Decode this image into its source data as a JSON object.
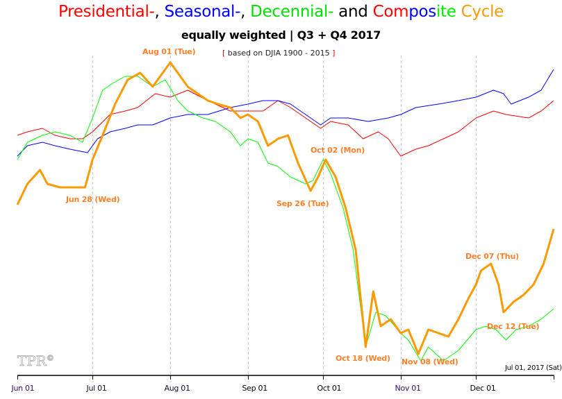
{
  "title_parts": [
    {
      "text": "Presidential-",
      "color": "#ff0000"
    },
    {
      "text": ", ",
      "color": "#000000"
    },
    {
      "text": "Seasonal-",
      "color": "#0000ff"
    },
    {
      "text": ", ",
      "color": "#000000"
    },
    {
      "text": "Decennial-",
      "color": "#00dd00"
    },
    {
      "text": " and ",
      "color": "#000000"
    },
    {
      "text": "Com",
      "color": "#ff0000"
    },
    {
      "text": "pos",
      "color": "#0000ff"
    },
    {
      "text": "ite",
      "color": "#00ee00"
    },
    {
      "text": " Cycle",
      "color": "#ff9900"
    }
  ],
  "subtitle": "equally weighted | Q3 + Q4 2017",
  "basis": {
    "open": "[",
    "text": " based on DJIA 1900 - 2015 ",
    "close": "]"
  },
  "end_date_label": "Jul 01, 2017 (Sat)",
  "watermark": "TPR©",
  "chart_data": {
    "type": "line",
    "title": "Presidential-, Seasonal-, Decennial- and Composite Cycle",
    "subtitle": "equally weighted | Q3 + Q4 2017",
    "x_range": [
      "2017-06-01",
      "2018-01-01"
    ],
    "y_range": [
      0,
      100
    ],
    "y_axis_labels": "none",
    "grid": "vertical dashed at month starts",
    "x_ticks": [
      "Jun 01",
      "Jul 01",
      "Aug 01",
      "Sep 01",
      "Oct 01",
      "Nov 01",
      "Dec 01"
    ],
    "x_tick_dates": [
      "2017-06-01",
      "2017-07-01",
      "2017-08-01",
      "2017-09-01",
      "2017-10-01",
      "2017-11-01",
      "2017-12-01"
    ],
    "series": [
      {
        "key": "presidential",
        "color": "#ff0000",
        "width": 1,
        "points": [
          [
            "2017-06-01",
            69
          ],
          [
            "2017-06-05",
            70
          ],
          [
            "2017-06-11",
            71
          ],
          [
            "2017-06-16",
            69
          ],
          [
            "2017-06-22",
            68
          ],
          [
            "2017-06-27",
            68
          ],
          [
            "2017-07-01",
            70
          ],
          [
            "2017-07-08",
            75
          ],
          [
            "2017-07-14",
            76
          ],
          [
            "2017-07-19",
            77
          ],
          [
            "2017-07-26",
            81
          ],
          [
            "2017-08-01",
            80
          ],
          [
            "2017-08-08",
            82
          ],
          [
            "2017-08-16",
            79
          ],
          [
            "2017-08-25",
            76
          ],
          [
            "2017-09-01",
            76
          ],
          [
            "2017-09-07",
            76
          ],
          [
            "2017-09-13",
            79
          ],
          [
            "2017-09-18",
            77
          ],
          [
            "2017-09-24",
            74
          ],
          [
            "2017-09-30",
            71
          ],
          [
            "2017-10-04",
            73
          ],
          [
            "2017-10-11",
            72
          ],
          [
            "2017-10-17",
            68
          ],
          [
            "2017-10-23",
            70
          ],
          [
            "2017-10-27",
            68
          ],
          [
            "2017-11-01",
            63
          ],
          [
            "2017-11-07",
            65
          ],
          [
            "2017-11-12",
            66
          ],
          [
            "2017-11-18",
            68
          ],
          [
            "2017-11-24",
            70
          ],
          [
            "2017-12-01",
            74
          ],
          [
            "2017-12-08",
            76
          ],
          [
            "2017-12-13",
            75
          ],
          [
            "2017-12-22",
            74
          ],
          [
            "2017-12-27",
            76
          ],
          [
            "2018-01-01",
            79
          ]
        ]
      },
      {
        "key": "seasonal",
        "color": "#0000ff",
        "width": 1,
        "points": [
          [
            "2017-06-01",
            63
          ],
          [
            "2017-06-05",
            66
          ],
          [
            "2017-06-11",
            67
          ],
          [
            "2017-06-16",
            66
          ],
          [
            "2017-06-22",
            65
          ],
          [
            "2017-06-29",
            64
          ],
          [
            "2017-07-03",
            68
          ],
          [
            "2017-07-08",
            70
          ],
          [
            "2017-07-14",
            71
          ],
          [
            "2017-07-19",
            72
          ],
          [
            "2017-07-25",
            72
          ],
          [
            "2017-08-01",
            74
          ],
          [
            "2017-08-08",
            75
          ],
          [
            "2017-08-16",
            75
          ],
          [
            "2017-08-25",
            77
          ],
          [
            "2017-09-01",
            78
          ],
          [
            "2017-09-07",
            79
          ],
          [
            "2017-09-13",
            79
          ],
          [
            "2017-09-18",
            78
          ],
          [
            "2017-09-24",
            75
          ],
          [
            "2017-09-30",
            72
          ],
          [
            "2017-10-04",
            74
          ],
          [
            "2017-10-11",
            74
          ],
          [
            "2017-10-19",
            73
          ],
          [
            "2017-10-27",
            74
          ],
          [
            "2017-11-01",
            75
          ],
          [
            "2017-11-07",
            77
          ],
          [
            "2017-11-16",
            78
          ],
          [
            "2017-11-24",
            79
          ],
          [
            "2017-12-01",
            80
          ],
          [
            "2017-12-08",
            82
          ],
          [
            "2017-12-12",
            81
          ],
          [
            "2017-12-15",
            78
          ],
          [
            "2017-12-22",
            80
          ],
          [
            "2017-12-27",
            82
          ],
          [
            "2018-01-01",
            88
          ]
        ]
      },
      {
        "key": "decennial",
        "color": "#00ff00",
        "width": 1,
        "points": [
          [
            "2017-06-01",
            62
          ],
          [
            "2017-06-05",
            67
          ],
          [
            "2017-06-11",
            69
          ],
          [
            "2017-06-16",
            70
          ],
          [
            "2017-06-22",
            69
          ],
          [
            "2017-06-27",
            67
          ],
          [
            "2017-07-01",
            74
          ],
          [
            "2017-07-05",
            82
          ],
          [
            "2017-07-09",
            84
          ],
          [
            "2017-07-14",
            86
          ],
          [
            "2017-07-19",
            86
          ],
          [
            "2017-07-25",
            83
          ],
          [
            "2017-07-30",
            85
          ],
          [
            "2017-08-04",
            79
          ],
          [
            "2017-08-08",
            76
          ],
          [
            "2017-08-14",
            74
          ],
          [
            "2017-08-19",
            73
          ],
          [
            "2017-08-25",
            70
          ],
          [
            "2017-08-29",
            66
          ],
          [
            "2017-09-01",
            68
          ],
          [
            "2017-09-05",
            67
          ],
          [
            "2017-09-09",
            61
          ],
          [
            "2017-09-13",
            60
          ],
          [
            "2017-09-18",
            57
          ],
          [
            "2017-09-24",
            55
          ],
          [
            "2017-09-27",
            56
          ],
          [
            "2017-10-01",
            62
          ],
          [
            "2017-10-04",
            58
          ],
          [
            "2017-10-09",
            48
          ],
          [
            "2017-10-13",
            36
          ],
          [
            "2017-10-18",
            8
          ],
          [
            "2017-10-22",
            18
          ],
          [
            "2017-10-26",
            17
          ],
          [
            "2017-11-01",
            12
          ],
          [
            "2017-11-04",
            10
          ],
          [
            "2017-11-09",
            4
          ],
          [
            "2017-11-12",
            8
          ],
          [
            "2017-11-18",
            4
          ],
          [
            "2017-11-24",
            7
          ],
          [
            "2017-12-01",
            13
          ],
          [
            "2017-12-05",
            14
          ],
          [
            "2017-12-09",
            13
          ],
          [
            "2017-12-13",
            10
          ],
          [
            "2017-12-17",
            13
          ],
          [
            "2017-12-22",
            14
          ],
          [
            "2017-12-27",
            16
          ],
          [
            "2018-01-01",
            19
          ]
        ]
      },
      {
        "key": "composite",
        "color": "#ff9900",
        "width": 3,
        "points": [
          [
            "2017-06-01",
            49
          ],
          [
            "2017-06-05",
            55
          ],
          [
            "2017-06-10",
            59
          ],
          [
            "2017-06-13",
            55
          ],
          [
            "2017-06-18",
            54
          ],
          [
            "2017-06-22",
            54
          ],
          [
            "2017-06-28",
            54
          ],
          [
            "2017-07-01",
            62
          ],
          [
            "2017-07-05",
            69
          ],
          [
            "2017-07-10",
            78
          ],
          [
            "2017-07-15",
            85
          ],
          [
            "2017-07-20",
            87
          ],
          [
            "2017-07-25",
            83
          ],
          [
            "2017-08-01",
            90
          ],
          [
            "2017-08-05",
            86
          ],
          [
            "2017-08-08",
            83
          ],
          [
            "2017-08-12",
            81
          ],
          [
            "2017-08-16",
            79
          ],
          [
            "2017-08-20",
            78
          ],
          [
            "2017-08-25",
            77
          ],
          [
            "2017-08-29",
            74
          ],
          [
            "2017-09-01",
            75
          ],
          [
            "2017-09-05",
            73
          ],
          [
            "2017-09-09",
            66
          ],
          [
            "2017-09-13",
            68
          ],
          [
            "2017-09-17",
            69
          ],
          [
            "2017-09-21",
            61
          ],
          [
            "2017-09-26",
            53
          ],
          [
            "2017-09-29",
            57
          ],
          [
            "2017-10-02",
            62
          ],
          [
            "2017-10-06",
            57
          ],
          [
            "2017-10-10",
            48
          ],
          [
            "2017-10-14",
            36
          ],
          [
            "2017-10-18",
            8
          ],
          [
            "2017-10-21",
            24
          ],
          [
            "2017-10-24",
            14
          ],
          [
            "2017-10-28",
            16
          ],
          [
            "2017-11-01",
            12
          ],
          [
            "2017-11-04",
            13
          ],
          [
            "2017-11-08",
            6
          ],
          [
            "2017-11-12",
            13
          ],
          [
            "2017-11-16",
            12
          ],
          [
            "2017-11-20",
            11
          ],
          [
            "2017-11-24",
            16
          ],
          [
            "2017-11-28",
            22
          ],
          [
            "2017-12-01",
            26
          ],
          [
            "2017-12-03",
            30
          ],
          [
            "2017-12-07",
            32
          ],
          [
            "2017-12-10",
            26
          ],
          [
            "2017-12-12",
            18
          ],
          [
            "2017-12-16",
            21
          ],
          [
            "2017-12-20",
            23
          ],
          [
            "2017-12-24",
            26
          ],
          [
            "2017-12-28",
            32
          ],
          [
            "2018-01-01",
            42
          ]
        ]
      }
    ],
    "annotations": [
      {
        "text": "Aug 01 (Tue)",
        "date": "2017-08-01",
        "kind": "high"
      },
      {
        "text": "Jun 28 (Wed)",
        "date": "2017-06-28",
        "kind": "low"
      },
      {
        "text": "Sep 26 (Tue)",
        "date": "2017-09-26",
        "kind": "low"
      },
      {
        "text": "Oct 02 (Mon)",
        "date": "2017-10-02",
        "kind": "high"
      },
      {
        "text": "Oct 18 (Wed)",
        "date": "2017-10-18",
        "kind": "low"
      },
      {
        "text": "Nov 08 (Wed)",
        "date": "2017-11-08",
        "kind": "low"
      },
      {
        "text": "Dec 07 (Thu)",
        "date": "2017-12-07",
        "kind": "high"
      },
      {
        "text": "Dec 12 (Tue)",
        "date": "2017-12-12",
        "kind": "low"
      }
    ]
  }
}
